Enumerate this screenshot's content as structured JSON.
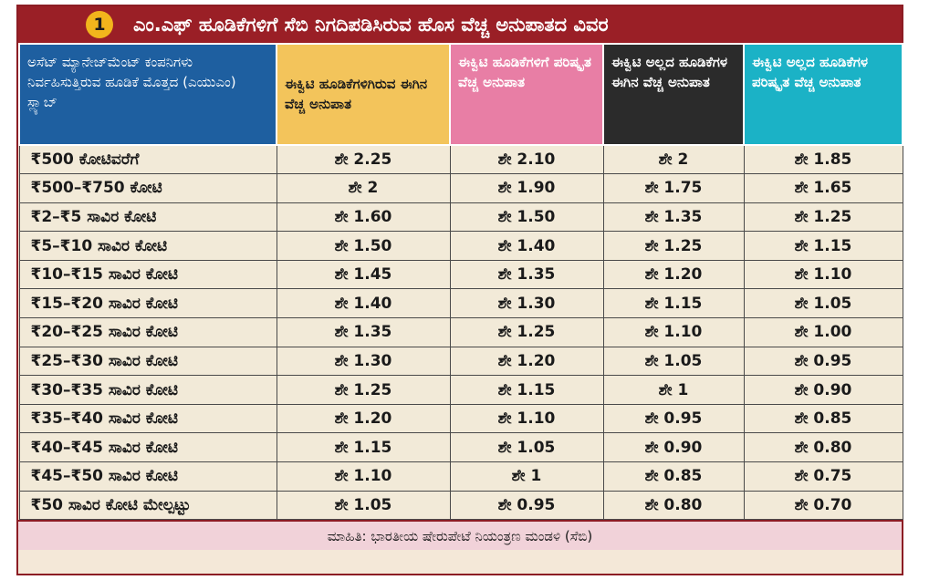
{
  "badge_number": "1",
  "title": "ಎಂ.ಎಫ್ ಹೂಡಿಕೆಗಳಿಗೆ ಸೆಬಿ ನಿಗದಿಪಡಿಸಿರುವ ಹೊಸ ವೆಚ್ಚ ಅನುಪಾತದ ವಿವರ",
  "source": "ಮಾಹಿತಿ: ಭಾರತೀಯ ಷೇರುಪೇಟೆ ನಿಯಂತ್ರಣ ಮಂಡಳಿ (ಸೆಬಿ)",
  "colors": {
    "title_bar": "#9a1f26",
    "badge": "#f2b51c",
    "header_slab": "#1e5fa0",
    "header_equity_current": "#f3c45b",
    "header_equity_revised": "#e87ea5",
    "header_nonequity_current": "#2b2b2b",
    "header_nonequity_revised": "#1bb2c6",
    "body": "#f2ead8",
    "footer": "#f1d2d9"
  },
  "chart_data": {
    "type": "table",
    "title": "ಎಂ.ಎಫ್ ಹೂಡಿಕೆಗಳಿಗೆ ಸೆಬಿ ನಿಗದಿಪಡಿಸಿರುವ ಹೊಸ ವೆಚ್ಚ ಅನುಪಾತದ ವಿವರ",
    "columns": [
      "ಅಸೆಟ್ ಮ್ಯಾನೇಜ್‌ಮೆಂಟ್ ಕಂಪನಿಗಳು ನಿರ್ವಹಿಸುತ್ತಿರುವ ಹೂಡಿಕೆ ಮೊತ್ತದ (ಎಯುಎಂ) ಸ್ಲ್ಯಾಬ್",
      "ಈಕ್ವಿಟಿ ಹೂಡಿಕೆಗಳಿಗಿರುವ ಈಗಿನ ವೆಚ್ಚ ಅನುಪಾತ",
      "ಈಕ್ವಿಟಿ ಹೂಡಿಕೆಗಳಿಗೆ ಪರಿಷ್ಕೃತ ವೆಚ್ಚ ಅನುಪಾತ",
      "ಈಕ್ವಿಟಿ ಅಲ್ಲದ ಹೂಡಿಕೆಗಳ ಈಗಿನ ವೆಚ್ಚ ಅನುಪಾತ",
      "ಈಕ್ವಿಟಿ ಅಲ್ಲದ ಹೂಡಿಕೆಗಳ ಪರಿಷ್ಕೃತ ವೆಚ್ಚ ಅನುಪಾತ"
    ],
    "rows": [
      [
        "₹500 ಕೋಟಿವರೆಗೆ",
        "ಶೇ 2.25",
        "ಶೇ 2.10",
        "ಶೇ 2",
        "ಶೇ 1.85"
      ],
      [
        "₹500–₹750 ಕೋಟಿ",
        "ಶೇ 2",
        "ಶೇ 1.90",
        "ಶೇ 1.75",
        "ಶೇ 1.65"
      ],
      [
        "₹2–₹5 ಸಾವಿರ ಕೋಟಿ",
        "ಶೇ 1.60",
        "ಶೇ 1.50",
        "ಶೇ 1.35",
        "ಶೇ 1.25"
      ],
      [
        "₹5–₹10 ಸಾವಿರ ಕೋಟಿ",
        "ಶೇ 1.50",
        "ಶೇ 1.40",
        "ಶೇ 1.25",
        "ಶೇ 1.15"
      ],
      [
        "₹10–₹15 ಸಾವಿರ ಕೋಟಿ",
        "ಶೇ 1.45",
        "ಶೇ 1.35",
        "ಶೇ 1.20",
        "ಶೇ 1.10"
      ],
      [
        "₹15–₹20 ಸಾವಿರ ಕೋಟಿ",
        "ಶೇ 1.40",
        "ಶೇ 1.30",
        "ಶೇ 1.15",
        "ಶೇ 1.05"
      ],
      [
        "₹20–₹25 ಸಾವಿರ ಕೋಟಿ",
        "ಶೇ 1.35",
        "ಶೇ 1.25",
        "ಶೇ 1.10",
        "ಶೇ 1.00"
      ],
      [
        "₹25–₹30 ಸಾವಿರ ಕೋಟಿ",
        "ಶೇ 1.30",
        "ಶೇ 1.20",
        "ಶೇ 1.05",
        "ಶೇ 0.95"
      ],
      [
        "₹30–₹35 ಸಾವಿರ ಕೋಟಿ",
        "ಶೇ 1.25",
        "ಶೇ 1.15",
        "ಶೇ 1",
        "ಶೇ 0.90"
      ],
      [
        "₹35–₹40 ಸಾವಿರ ಕೋಟಿ",
        "ಶೇ 1.20",
        "ಶೇ 1.10",
        "ಶೇ 0.95",
        "ಶೇ 0.85"
      ],
      [
        "₹40–₹45 ಸಾವಿರ ಕೋಟಿ",
        "ಶೇ 1.15",
        "ಶೇ 1.05",
        "ಶೇ 0.90",
        "ಶೇ 0.80"
      ],
      [
        "₹45–₹50 ಸಾವಿರ ಕೋಟಿ",
        "ಶೇ 1.10",
        "ಶೇ 1",
        "ಶೇ 0.85",
        "ಶೇ 0.75"
      ],
      [
        "₹50 ಸಾವಿರ ಕೋಟಿ ಮೇಲ್ಪಟ್ಟು",
        "ಶೇ 1.05",
        "ಶೇ 0.95",
        "ಶೇ 0.80",
        "ಶೇ 0.70"
      ]
    ]
  }
}
